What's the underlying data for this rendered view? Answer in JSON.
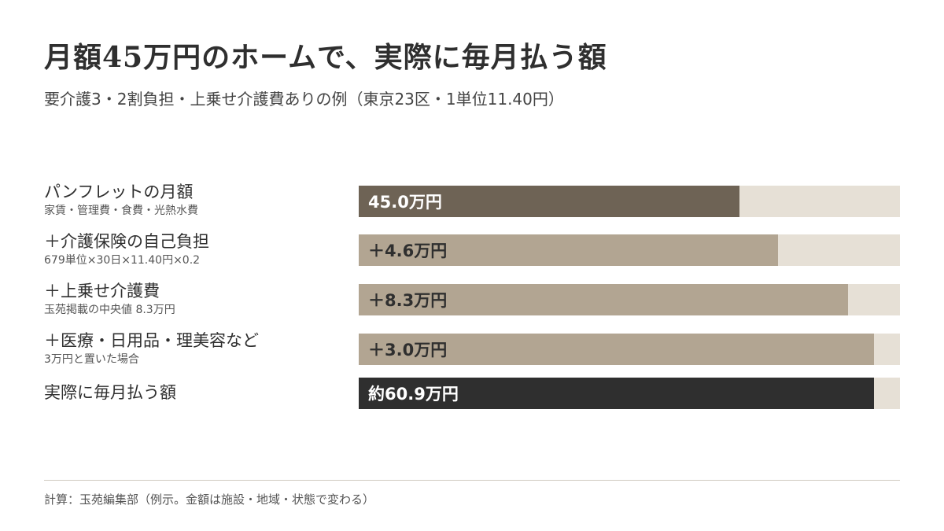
{
  "title": "月額45万円のホームで、実際に毎月払う額",
  "subtitle": "要介護3・2割負担・上乗せ介護費ありの例（東京23区・1単位11.40円）",
  "footer": "計算：玉苑編集部（例示。金額は施設・地域・状態で変わる）",
  "colors": {
    "base": "#6e6355",
    "addition": "#b2a592",
    "total": "#2f2f2f",
    "track": "#e6e0d6",
    "label_light": "#ffffff",
    "label_dark": "#2f2f2f"
  },
  "chart_data": {
    "type": "bar",
    "orientation": "horizontal",
    "style": "stacked-cumulative",
    "unit": "万円",
    "xlim": [
      0,
      64
    ],
    "categories": [
      "パンフレットの月額",
      "＋介護保険の自己負担",
      "＋上乗せ介護費",
      "＋医療・日用品・理美容など",
      "実際に毎月払う額"
    ],
    "rows": [
      {
        "label": "パンフレットの月額",
        "note": "家賃・管理費・食費・光熱水費",
        "value": 45.0,
        "cumulative": 45.0,
        "bar_label": "45.0万円",
        "kind": "base"
      },
      {
        "label": "＋介護保険の自己負担",
        "note": "679単位×30日×11.40円×0.2",
        "value": 4.6,
        "cumulative": 49.6,
        "bar_label": "＋4.6万円",
        "kind": "addition"
      },
      {
        "label": "＋上乗せ介護費",
        "note": "玉苑掲載の中央値 8.3万円",
        "value": 8.3,
        "cumulative": 57.9,
        "bar_label": "＋8.3万円",
        "kind": "addition"
      },
      {
        "label": "＋医療・日用品・理美容など",
        "note": "3万円と置いた場合",
        "value": 3.0,
        "cumulative": 60.9,
        "bar_label": "＋3.0万円",
        "kind": "addition"
      },
      {
        "label": "実際に毎月払う額",
        "note": "",
        "value": 60.9,
        "cumulative": 60.9,
        "bar_label": "約60.9万円",
        "kind": "total"
      }
    ]
  }
}
